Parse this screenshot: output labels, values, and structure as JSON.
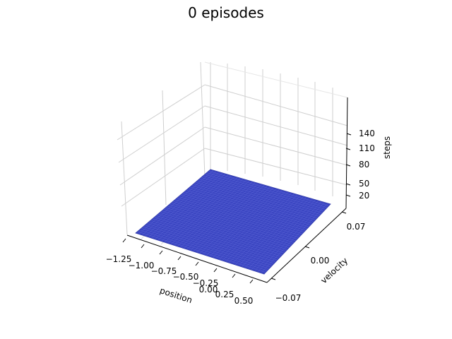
{
  "chart_data": {
    "type": "surface3d",
    "title": "0 episodes",
    "x": {
      "label": "position",
      "range": [
        -1.2,
        0.5
      ],
      "ticks": [
        "−1.25",
        "−1.00",
        "−0.75",
        "−0.50",
        "−0.25",
        "0.00",
        "0.25",
        "0.50"
      ]
    },
    "y": {
      "label": "velocity",
      "range": [
        -0.07,
        0.07
      ],
      "ticks": [
        "−0.07",
        "0.00",
        "0.07"
      ]
    },
    "z": {
      "label": "steps",
      "ticks": [
        "20",
        "50",
        "80",
        "110",
        "140"
      ]
    },
    "surface": {
      "description_value": "flat (constant steps)",
      "color": "#3b46c2",
      "edge_color": "#5a64d6"
    },
    "grid": true
  }
}
